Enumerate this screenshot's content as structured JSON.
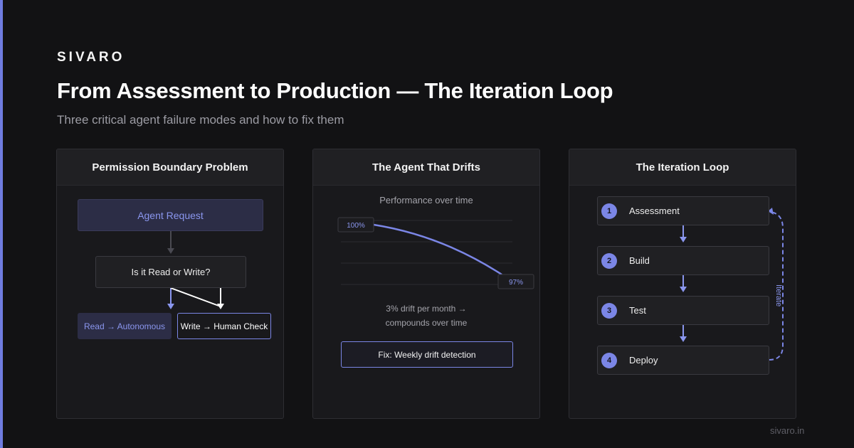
{
  "brand": "SIVARO",
  "title": "From Assessment to Production — The Iteration Loop",
  "subtitle": "Three critical agent failure modes and how to fix them",
  "footer": "sivaro.in",
  "colors": {
    "accent": "#7b86e6",
    "background": "#121214",
    "panel": "#19191c"
  },
  "panels": [
    {
      "title": "Permission Boundary Problem",
      "agent_request": "Agent Request",
      "decision": "Is it Read or Write?",
      "read_outcome": "Read → Autonomous",
      "write_outcome": "Write → Human Check"
    },
    {
      "title": "The Agent That Drifts",
      "chart_title": "Performance over time",
      "start_label": "100%",
      "end_label": "97%",
      "caption_line1": "3% drift per month →",
      "caption_line2": "compounds over time",
      "fix": "Fix: Weekly drift detection"
    },
    {
      "title": "The Iteration Loop",
      "steps": [
        {
          "num": "1",
          "label": "Assessment"
        },
        {
          "num": "2",
          "label": "Build"
        },
        {
          "num": "3",
          "label": "Test"
        },
        {
          "num": "4",
          "label": "Deploy"
        }
      ],
      "loop_label": "Iterate"
    }
  ]
}
